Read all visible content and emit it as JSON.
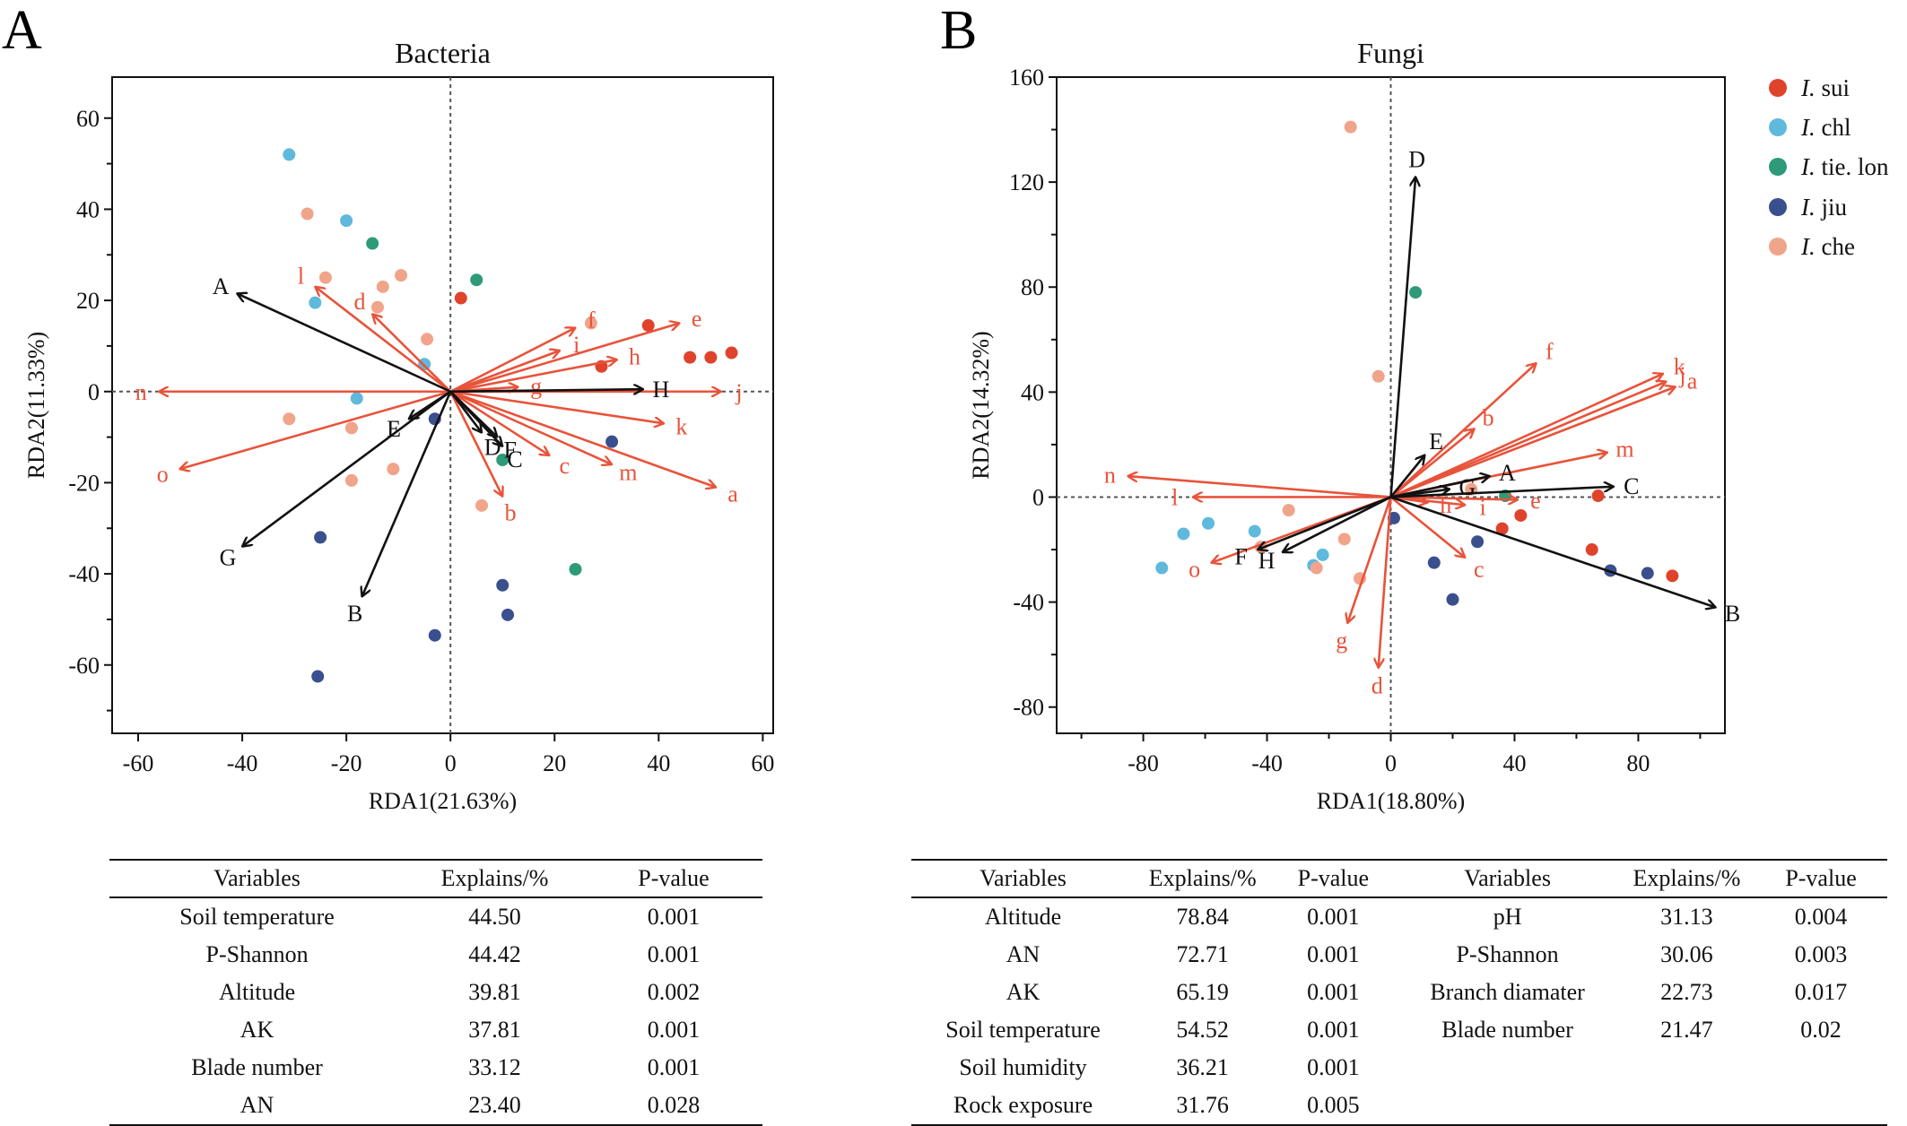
{
  "colors": {
    "env_arrow": "#111111",
    "species_arrow": "#e8533a",
    "I_sui": "#e0432c",
    "I_chl": "#5fb9dd",
    "I_tie_lon": "#2e9a78",
    "I_jiu": "#3a4f8e",
    "I_che": "#f0a48a"
  },
  "panel_a": {
    "letter": "A",
    "table": {
      "headers": [
        "Variables",
        "Explains/%",
        "P-value"
      ],
      "rows": [
        [
          "Soil temperature",
          "44.50",
          "0.001"
        ],
        [
          "P-Shannon",
          "44.42",
          "0.001"
        ],
        [
          "Altitude",
          "39.81",
          "0.002"
        ],
        [
          "AK",
          "37.81",
          "0.001"
        ],
        [
          "Blade number",
          "33.12",
          "0.001"
        ],
        [
          "AN",
          "23.40",
          "0.028"
        ]
      ]
    }
  },
  "panel_b": {
    "letter": "B",
    "table": {
      "headers": [
        "Variables",
        "Explains/%",
        "P-value",
        "Variables",
        "Explains/%",
        "P-value"
      ],
      "rows": [
        [
          "Altitude",
          "78.84",
          "0.001",
          "pH",
          "31.13",
          "0.004"
        ],
        [
          "AN",
          "72.71",
          "0.001",
          "P-Shannon",
          "30.06",
          "0.003"
        ],
        [
          "AK",
          "65.19",
          "0.001",
          "Branch diamater",
          "22.73",
          "0.017"
        ],
        [
          "Soil temperature",
          "54.52",
          "0.001",
          "Blade number",
          "21.47",
          "0.02"
        ],
        [
          "Soil humidity",
          "36.21",
          "0.001",
          "",
          "",
          ""
        ],
        [
          "Rock exposure",
          "31.76",
          "0.005",
          "",
          "",
          ""
        ]
      ]
    }
  },
  "legend": [
    {
      "prefix": "I.",
      "name": " sui",
      "color": "#e0432c"
    },
    {
      "prefix": "I.",
      "name": " chl",
      "color": "#5fb9dd"
    },
    {
      "prefix": "I.",
      "name": " tie. lon",
      "color": "#2e9a78"
    },
    {
      "prefix": "I.",
      "name": " jiu",
      "color": "#3a4f8e"
    },
    {
      "prefix": "I.",
      "name": " che",
      "color": "#f0a48a"
    }
  ],
  "chart_data": [
    {
      "type": "scatter",
      "title": "Bacteria",
      "xlabel": "RDA1(21.63%)",
      "ylabel": "RDA2(11.33%)",
      "xlim": [
        -65,
        62
      ],
      "ylim": [
        -75,
        69
      ],
      "xticks": [
        -60,
        -40,
        -20,
        0,
        20,
        40,
        60
      ],
      "yticks": [
        -60,
        -40,
        -20,
        0,
        20,
        40,
        60
      ],
      "ticks_minor_y": [
        -70,
        -50,
        -30,
        -10,
        10,
        30,
        50
      ],
      "env_arrows": [
        {
          "label": "A",
          "x": -41,
          "y": 21.5
        },
        {
          "label": "B",
          "x": -17,
          "y": -45
        },
        {
          "label": "C",
          "x": 10,
          "y": -12
        },
        {
          "label": "D",
          "x": 6,
          "y": -9
        },
        {
          "label": "E",
          "x": -8,
          "y": -6
        },
        {
          "label": "F",
          "x": 9,
          "y": -10
        },
        {
          "label": "G",
          "x": -40,
          "y": -34
        },
        {
          "label": "H",
          "x": 37,
          "y": 0.5
        }
      ],
      "species_arrows": [
        {
          "label": "a",
          "x": 51,
          "y": -21
        },
        {
          "label": "b",
          "x": 10,
          "y": -23
        },
        {
          "label": "c",
          "x": 19,
          "y": -14
        },
        {
          "label": "d",
          "x": -15,
          "y": 17
        },
        {
          "label": "e",
          "x": 44,
          "y": 15
        },
        {
          "label": "f",
          "x": 24,
          "y": 14
        },
        {
          "label": "g",
          "x": 13,
          "y": 1
        },
        {
          "label": "h",
          "x": 32,
          "y": 7
        },
        {
          "label": "i",
          "x": 21,
          "y": 9
        },
        {
          "label": "j",
          "x": 52,
          "y": 0
        },
        {
          "label": "k",
          "x": 41,
          "y": -7
        },
        {
          "label": "l",
          "x": -26,
          "y": 23
        },
        {
          "label": "m",
          "x": 31,
          "y": -16
        },
        {
          "label": "n",
          "x": -56,
          "y": 0
        },
        {
          "label": "o",
          "x": -52,
          "y": -17
        }
      ],
      "points": [
        {
          "g": 0,
          "x": 2,
          "y": 20.5
        },
        {
          "g": 0,
          "x": 29,
          "y": 5.5
        },
        {
          "g": 0,
          "x": 38,
          "y": 14.5
        },
        {
          "g": 0,
          "x": 46,
          "y": 7.5
        },
        {
          "g": 0,
          "x": 50,
          "y": 7.5
        },
        {
          "g": 0,
          "x": 54,
          "y": 8.5
        },
        {
          "g": 1,
          "x": -31,
          "y": 52
        },
        {
          "g": 1,
          "x": -20,
          "y": 37.5
        },
        {
          "g": 1,
          "x": -26,
          "y": 19.5
        },
        {
          "g": 1,
          "x": -5,
          "y": 6
        },
        {
          "g": 1,
          "x": -18,
          "y": -1.5
        },
        {
          "g": 2,
          "x": -15,
          "y": 32.5
        },
        {
          "g": 2,
          "x": 5,
          "y": 24.5
        },
        {
          "g": 2,
          "x": 10,
          "y": -15
        },
        {
          "g": 2,
          "x": 24,
          "y": -39
        },
        {
          "g": 3,
          "x": -3,
          "y": -6
        },
        {
          "g": 3,
          "x": 31,
          "y": -11
        },
        {
          "g": 3,
          "x": -25,
          "y": -32
        },
        {
          "g": 3,
          "x": 10,
          "y": -42.5
        },
        {
          "g": 3,
          "x": 11,
          "y": -49
        },
        {
          "g": 3,
          "x": -3,
          "y": -53.5
        },
        {
          "g": 3,
          "x": -25.5,
          "y": -62.5
        },
        {
          "g": 4,
          "x": -27.5,
          "y": 39
        },
        {
          "g": 4,
          "x": -24,
          "y": 25
        },
        {
          "g": 4,
          "x": -13,
          "y": 23
        },
        {
          "g": 4,
          "x": -9.5,
          "y": 25.5
        },
        {
          "g": 4,
          "x": -14,
          "y": 18.5
        },
        {
          "g": 4,
          "x": -4.5,
          "y": 11.5
        },
        {
          "g": 4,
          "x": 27,
          "y": 15
        },
        {
          "g": 4,
          "x": -31,
          "y": -6
        },
        {
          "g": 4,
          "x": -19,
          "y": -8
        },
        {
          "g": 4,
          "x": -11,
          "y": -17
        },
        {
          "g": 4,
          "x": -19,
          "y": -19.5
        },
        {
          "g": 4,
          "x": 6,
          "y": -25
        }
      ]
    },
    {
      "type": "scatter",
      "title": "Fungi",
      "xlabel": "RDA1(18.80%)",
      "ylabel": "RDA2(14.32%)",
      "xlim": [
        -108,
        108
      ],
      "ylim": [
        -90,
        160
      ],
      "xticks": [
        -80,
        -40,
        0,
        40,
        80
      ],
      "yticks": [
        -80,
        -40,
        0,
        40,
        80,
        120,
        160
      ],
      "ticks_minor_x": [
        -100,
        -60,
        -20,
        20,
        60,
        100
      ],
      "ticks_minor_y": [
        -60,
        -20,
        20,
        60,
        100,
        140
      ],
      "env_arrows": [
        {
          "label": "A",
          "x": 32,
          "y": 8
        },
        {
          "label": "B",
          "x": 105,
          "y": -42
        },
        {
          "label": "C",
          "x": 72,
          "y": 4
        },
        {
          "label": "D",
          "x": 8,
          "y": 122
        },
        {
          "label": "E",
          "x": 11,
          "y": 16
        },
        {
          "label": "F",
          "x": -43,
          "y": -20
        },
        {
          "label": "G",
          "x": 19,
          "y": 3
        },
        {
          "label": "H",
          "x": -35,
          "y": -21
        }
      ],
      "species_arrows": [
        {
          "label": "a",
          "x": 92,
          "y": 42
        },
        {
          "label": "b",
          "x": 27,
          "y": 26
        },
        {
          "label": "c",
          "x": 24,
          "y": -23
        },
        {
          "label": "d",
          "x": -4,
          "y": -65
        },
        {
          "label": "e",
          "x": 41,
          "y": -1
        },
        {
          "label": "f",
          "x": 47,
          "y": 51
        },
        {
          "label": "g",
          "x": -14,
          "y": -48
        },
        {
          "label": "h",
          "x": 12,
          "y": -2
        },
        {
          "label": "i",
          "x": 24,
          "y": -3
        },
        {
          "label": "j",
          "x": 89,
          "y": 44
        },
        {
          "label": "k",
          "x": 88,
          "y": 47
        },
        {
          "label": "l",
          "x": -64,
          "y": 0
        },
        {
          "label": "m",
          "x": 70,
          "y": 17
        },
        {
          "label": "n",
          "x": -85,
          "y": 8
        },
        {
          "label": "o",
          "x": -58,
          "y": -25
        }
      ],
      "points": [
        {
          "g": 0,
          "x": 42,
          "y": -7
        },
        {
          "g": 0,
          "x": 36,
          "y": -12
        },
        {
          "g": 0,
          "x": 67,
          "y": 0.5
        },
        {
          "g": 0,
          "x": 65,
          "y": -20
        },
        {
          "g": 0,
          "x": 91,
          "y": -30
        },
        {
          "g": 1,
          "x": -74,
          "y": -27
        },
        {
          "g": 1,
          "x": -67,
          "y": -14
        },
        {
          "g": 1,
          "x": -59,
          "y": -10
        },
        {
          "g": 1,
          "x": -44,
          "y": -13
        },
        {
          "g": 1,
          "x": -22,
          "y": -22
        },
        {
          "g": 1,
          "x": -25,
          "y": -26
        },
        {
          "g": 2,
          "x": 8,
          "y": 78
        },
        {
          "g": 2,
          "x": 37,
          "y": 0.5
        },
        {
          "g": 3,
          "x": 1,
          "y": -8
        },
        {
          "g": 3,
          "x": 28,
          "y": -17
        },
        {
          "g": 3,
          "x": 14,
          "y": -25
        },
        {
          "g": 3,
          "x": 20,
          "y": -39
        },
        {
          "g": 3,
          "x": 71,
          "y": -28
        },
        {
          "g": 3,
          "x": 83,
          "y": -29
        },
        {
          "g": 4,
          "x": -13,
          "y": 141
        },
        {
          "g": 4,
          "x": -4,
          "y": 46
        },
        {
          "g": 4,
          "x": -33,
          "y": -5
        },
        {
          "g": 4,
          "x": -42,
          "y": -19
        },
        {
          "g": 4,
          "x": -15,
          "y": -16
        },
        {
          "g": 4,
          "x": -24,
          "y": -27
        },
        {
          "g": 4,
          "x": -10,
          "y": -31
        },
        {
          "g": 4,
          "x": 26,
          "y": 3
        }
      ]
    }
  ]
}
